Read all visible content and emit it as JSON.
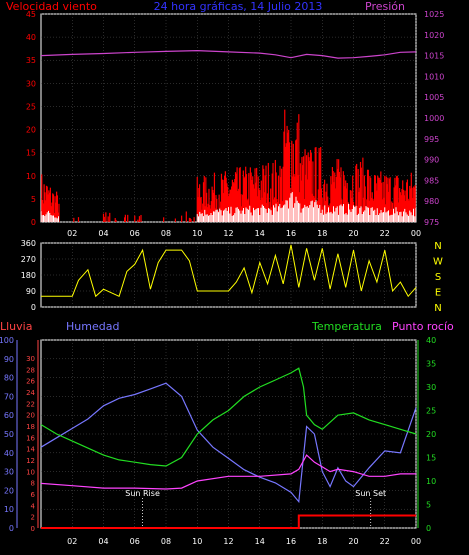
{
  "colors": {
    "background": "#000000",
    "frame": "#ffffff",
    "grid": "#555555",
    "wind": "#ff0000",
    "wind_avg": "#ffffff",
    "wind_dir": "#ffff00",
    "pressure": "#cc44cc",
    "rain_axis": "#ff4444",
    "humidity": "#7777ff",
    "temperature": "#22dd22",
    "dewpoint": "#ff44ff",
    "rain": "#ff0000"
  },
  "chart_data": [
    {
      "type": "line",
      "title": "24 hora gráficas, 14 Julio 2013",
      "left_axis_label": "Velocidad viento",
      "right_axis_label": "Presión",
      "x_ticks": [
        "02",
        "04",
        "06",
        "08",
        "10",
        "12",
        "14",
        "16",
        "18",
        "20",
        "22",
        "00"
      ],
      "y_left_ticks": [
        0,
        5,
        10,
        15,
        20,
        25,
        30,
        35,
        40,
        45
      ],
      "y_left_range": [
        0,
        45
      ],
      "y_right_ticks": [
        975,
        980,
        985,
        990,
        995,
        1000,
        1005,
        1010,
        1015,
        1020,
        1025
      ],
      "y_right_range": [
        975,
        1025
      ],
      "grid": true,
      "series": [
        {
          "axis": "right",
          "points": [
            [
              0,
              1015
            ],
            [
              2,
              1015.3
            ],
            [
              4,
              1015.5
            ],
            [
              6,
              1015.8
            ],
            [
              8,
              1016
            ],
            [
              10,
              1016.2
            ],
            [
              12,
              1015.9
            ],
            [
              14,
              1015.6
            ],
            [
              15,
              1015.2
            ],
            [
              16,
              1014.5
            ],
            [
              17,
              1015.3
            ],
            [
              18,
              1015
            ],
            [
              19,
              1014.4
            ],
            [
              20,
              1014.5
            ],
            [
              21,
              1014.8
            ],
            [
              22,
              1015.2
            ],
            [
              23,
              1015.8
            ],
            [
              24,
              1015.9
            ]
          ]
        }
      ]
    },
    {
      "type": "line",
      "y_ticks": [
        0,
        90,
        180,
        270,
        360
      ],
      "y_range": [
        0,
        360
      ],
      "right_labels": [
        "N",
        "W",
        "S",
        "E",
        "N"
      ],
      "grid": true,
      "series": [
        {
          "points": [
            [
              0,
              60
            ],
            [
              1,
              60
            ],
            [
              2,
              60
            ],
            [
              2.4,
              150
            ],
            [
              3,
              210
            ],
            [
              3.5,
              60
            ],
            [
              4,
              100
            ],
            [
              5,
              60
            ],
            [
              5.5,
              200
            ],
            [
              6,
              240
            ],
            [
              6.5,
              320
            ],
            [
              7,
              100
            ],
            [
              7.5,
              250
            ],
            [
              8,
              320
            ],
            [
              9,
              320
            ],
            [
              9.5,
              260
            ],
            [
              10,
              90
            ],
            [
              11,
              90
            ],
            [
              12,
              90
            ],
            [
              12.5,
              140
            ],
            [
              13,
              220
            ],
            [
              13.5,
              80
            ],
            [
              14,
              250
            ],
            [
              14.5,
              130
            ],
            [
              15,
              290
            ],
            [
              15.5,
              130
            ],
            [
              16,
              350
            ],
            [
              16.5,
              110
            ],
            [
              17,
              330
            ],
            [
              17.5,
              150
            ],
            [
              18,
              330
            ],
            [
              18.5,
              100
            ],
            [
              19,
              300
            ],
            [
              19.5,
              110
            ],
            [
              20,
              320
            ],
            [
              20.5,
              90
            ],
            [
              21,
              260
            ],
            [
              21.5,
              140
            ],
            [
              22,
              320
            ],
            [
              22.5,
              90
            ],
            [
              23,
              140
            ],
            [
              23.5,
              60
            ],
            [
              24,
              110
            ]
          ]
        }
      ]
    },
    {
      "type": "line",
      "left_outer_label": "Lluvia",
      "left_inner_label": "Humedad",
      "right_inner_label": "Temperatura",
      "right_outer_label": "Punto rocío",
      "x_ticks": [
        "02",
        "04",
        "06",
        "08",
        "10",
        "12",
        "14",
        "16",
        "18",
        "20",
        "22",
        "00"
      ],
      "y_humidity_ticks": [
        0,
        10,
        20,
        30,
        40,
        50,
        60,
        70,
        80,
        90,
        100
      ],
      "y_rain_ticks": [
        0,
        2,
        4,
        6,
        8,
        10,
        12,
        14,
        16,
        18,
        20,
        22,
        24,
        26,
        28,
        30
      ],
      "y_temp_ticks": [
        0,
        5,
        10,
        15,
        20,
        25,
        30,
        35,
        40
      ],
      "y_temp_range": [
        0,
        40
      ],
      "grid": true,
      "annotations": [
        {
          "label": "Sun Rise",
          "x": 6.5
        },
        {
          "label": "Sun Set",
          "x": 21.1
        }
      ],
      "series": [
        {
          "name": "Humedad",
          "axis": "humidity",
          "points": [
            [
              0,
              43
            ],
            [
              1,
              48
            ],
            [
              2,
              53
            ],
            [
              3,
              58
            ],
            [
              4,
              65
            ],
            [
              5,
              69
            ],
            [
              6,
              71
            ],
            [
              7,
              74
            ],
            [
              8,
              77
            ],
            [
              9,
              70
            ],
            [
              10,
              52
            ],
            [
              11,
              43
            ],
            [
              12,
              37
            ],
            [
              13,
              31
            ],
            [
              14,
              27
            ],
            [
              15,
              24
            ],
            [
              16,
              19
            ],
            [
              16.5,
              14
            ],
            [
              16.7,
              30
            ],
            [
              17,
              54
            ],
            [
              17.5,
              50
            ],
            [
              18,
              30
            ],
            [
              18.5,
              22
            ],
            [
              19,
              32
            ],
            [
              19.5,
              25
            ],
            [
              20,
              22
            ],
            [
              21,
              32
            ],
            [
              22,
              41
            ],
            [
              23,
              40
            ],
            [
              24,
              64
            ]
          ]
        },
        {
          "name": "Temperatura",
          "axis": "temp",
          "points": [
            [
              0,
              22
            ],
            [
              1,
              20
            ],
            [
              2,
              18.5
            ],
            [
              3,
              17
            ],
            [
              4,
              15.5
            ],
            [
              5,
              14.5
            ],
            [
              6,
              14
            ],
            [
              7,
              13.5
            ],
            [
              8,
              13.2
            ],
            [
              9,
              15
            ],
            [
              10,
              20
            ],
            [
              11,
              23
            ],
            [
              12,
              25
            ],
            [
              13,
              28
            ],
            [
              14,
              30
            ],
            [
              15,
              31.5
            ],
            [
              16,
              33
            ],
            [
              16.5,
              34
            ],
            [
              16.8,
              30
            ],
            [
              17,
              24
            ],
            [
              17.5,
              22
            ],
            [
              18,
              21
            ],
            [
              19,
              24
            ],
            [
              20,
              24.5
            ],
            [
              21,
              23
            ],
            [
              22,
              22
            ],
            [
              23,
              21
            ],
            [
              24,
              20
            ]
          ]
        },
        {
          "name": "Punto rocío",
          "axis": "temp",
          "points": [
            [
              0,
              9.5
            ],
            [
              2,
              9
            ],
            [
              4,
              8.5
            ],
            [
              6,
              8.5
            ],
            [
              8,
              8.3
            ],
            [
              9,
              8.5
            ],
            [
              10,
              10
            ],
            [
              12,
              11
            ],
            [
              14,
              11
            ],
            [
              16,
              11.5
            ],
            [
              16.5,
              12.5
            ],
            [
              17,
              15.5
            ],
            [
              17.5,
              14
            ],
            [
              18,
              13
            ],
            [
              18.5,
              12
            ],
            [
              19,
              12.5
            ],
            [
              20,
              12
            ],
            [
              21,
              11
            ],
            [
              22,
              11
            ],
            [
              23,
              11.5
            ],
            [
              24,
              11.5
            ]
          ]
        },
        {
          "name": "Lluvia",
          "axis": "rain",
          "points": [
            [
              0,
              0
            ],
            [
              16.5,
              0
            ],
            [
              16.5,
              2.2
            ],
            [
              24,
              2.2
            ]
          ]
        }
      ]
    }
  ]
}
